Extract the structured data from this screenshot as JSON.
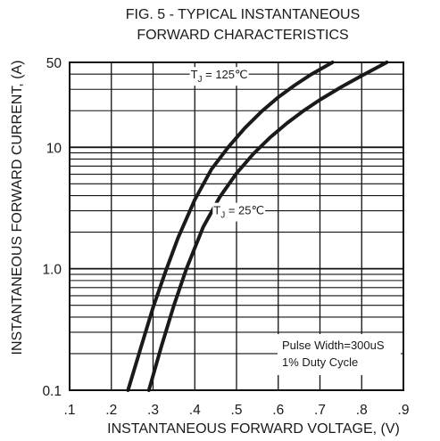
{
  "chart_data": {
    "type": "line",
    "title_line1": "FIG. 5 - TYPICAL INSTANTANEOUS",
    "title_line2": "FORWARD CHARACTERISTICS",
    "xlabel": "INSTANTANEOUS FORWARD VOLTAGE, (V)",
    "ylabel": "INSTANTANEOUS FORWARD CURRENT, (A)",
    "xlim": [
      0.1,
      0.9
    ],
    "ylim": [
      0.1,
      50
    ],
    "yscale": "log",
    "grid": true,
    "x_ticks": [
      ".1",
      ".2",
      ".3",
      ".4",
      ".5",
      ".6",
      ".7",
      ".8",
      ".9"
    ],
    "y_ticks": [
      {
        "value": 50,
        "label": "50"
      },
      {
        "value": 10,
        "label": "10"
      },
      {
        "value": 1,
        "label": "1.0"
      },
      {
        "value": 0.1,
        "label": "0.1"
      }
    ],
    "series": [
      {
        "label_main": "T",
        "label_sub": "J",
        "label_rest": " = 125℃",
        "x": [
          0.24,
          0.27,
          0.3,
          0.33,
          0.36,
          0.4,
          0.44,
          0.48,
          0.52,
          0.56,
          0.6,
          0.64,
          0.68,
          0.73
        ],
        "y": [
          0.1,
          0.22,
          0.48,
          0.95,
          1.8,
          3.7,
          6.6,
          10.0,
          14.4,
          19.7,
          25.8,
          32.5,
          40.0,
          50.0
        ]
      },
      {
        "label_main": "T",
        "label_sub": "J",
        "label_rest": " = 25℃",
        "x": [
          0.29,
          0.32,
          0.35,
          0.38,
          0.42,
          0.46,
          0.5,
          0.54,
          0.58,
          0.62,
          0.66,
          0.7,
          0.75,
          0.8,
          0.86
        ],
        "y": [
          0.1,
          0.23,
          0.5,
          1.0,
          2.2,
          3.9,
          6.1,
          8.8,
          12.0,
          15.7,
          19.9,
          24.6,
          31.2,
          38.8,
          50.0
        ]
      }
    ],
    "annotation": [
      "Pulse Width=300uS",
      "1% Duty Cycle"
    ]
  }
}
